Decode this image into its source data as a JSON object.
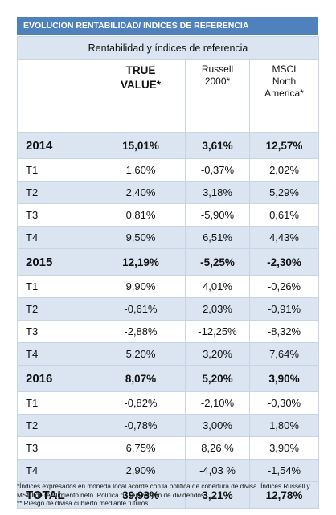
{
  "title": "EVOLUCION RENTABILIDAD/ INDICES DE REFERENCIA",
  "subtitle": "Rentabilidad  y índices de referencia",
  "columns": {
    "true_value": "TRUE VALUE*",
    "russell": "Russell 2000*",
    "msci": "MSCI North America*"
  },
  "rows": [
    {
      "label": "2014",
      "type": "year",
      "tv": "15,01%",
      "ru": "3,61%",
      "ms": "12,57%"
    },
    {
      "label": "T1",
      "type": "q",
      "tv": "1,60%",
      "ru": "-0,37%",
      "ms": "2,02%"
    },
    {
      "label": "T2",
      "type": "q",
      "tv": "2,40%",
      "ru": "3,18%",
      "ms": "5,29%"
    },
    {
      "label": "T3",
      "type": "q",
      "tv": "0,81%",
      "ru": "-5,90%",
      "ms": "0,61%"
    },
    {
      "label": "T4",
      "type": "q",
      "tv": "9,50%",
      "ru": "6,51%",
      "ms": "4,43%"
    },
    {
      "label": "2015",
      "type": "year",
      "tv": "12,19%",
      "ru": "-5,25%",
      "ms": "-2,30%"
    },
    {
      "label": "T1",
      "type": "q",
      "tv": "9,90%",
      "ru": "4,01%",
      "ms": "-0,26%"
    },
    {
      "label": "T2",
      "type": "q",
      "tv": "-0,61%",
      "ru": "2,03%",
      "ms": "-0,91%"
    },
    {
      "label": "T3",
      "type": "q",
      "tv": "-2,88%",
      "ru": "-12,25%",
      "ms": "-8,32%"
    },
    {
      "label": "T4",
      "type": "q",
      "tv": "5,20%",
      "ru": "3,20%",
      "ms": "7,64%"
    },
    {
      "label": "2016",
      "type": "year",
      "tv": "8,07%",
      "ru": "5,20%",
      "ms": "3,90%"
    },
    {
      "label": "T1",
      "type": "q",
      "tv": "-0,82%",
      "ru": "-2,10%",
      "ms": "-0,30%"
    },
    {
      "label": "T2",
      "type": "q",
      "tv": "-0,78%",
      "ru": "3,00%",
      "ms": "1,80%"
    },
    {
      "label": "T3",
      "type": "q",
      "tv": "6,75%",
      "ru": "8,26 %",
      "ms": "3,90%"
    },
    {
      "label": "T4",
      "type": "q",
      "tv": "2,90%",
      "ru": "-4,03 %",
      "ms": "-1,54%"
    },
    {
      "label": "TOTAL",
      "type": "year",
      "tv": "39,93%",
      "ru": "3,21%",
      "ms": "12,78%"
    }
  ],
  "footnotes": [
    "*Índices expresados en moneda local acorde con la política de cobertura de divisa. Índices Russell y MSCI  de rendimiento neto. Política de reinversión de dividendos.",
    "** Riesgo de divisa cubierto mediante futuros."
  ],
  "colors": {
    "header_blue": "#4f81bd",
    "band_blue": "#dbe5f1",
    "grid_line": "#c8d3e6"
  }
}
